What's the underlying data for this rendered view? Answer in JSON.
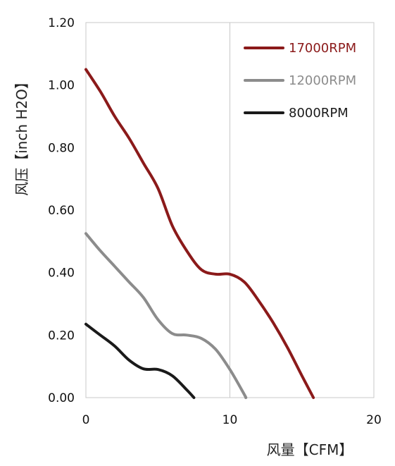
{
  "chart_data": {
    "type": "line",
    "title": "",
    "xlabel": "风量【CFM】",
    "ylabel": "风压【inch H2O】",
    "xlim": [
      0,
      20
    ],
    "ylim": [
      0,
      1.2
    ],
    "xticks": [
      0,
      10,
      20
    ],
    "xtick_labels": [
      "0",
      "10",
      "20"
    ],
    "yticks": [
      0,
      0.2,
      0.4,
      0.6,
      0.8,
      1.0,
      1.2
    ],
    "ytick_labels": [
      "0.00",
      "0.20",
      "0.40",
      "0.60",
      "0.80",
      "1.00",
      "1.20"
    ],
    "grid": "vertical",
    "legend_position": "top-right",
    "series": [
      {
        "name": "17000RPM",
        "color": "#8b1a1a",
        "points": [
          [
            0,
            1.05
          ],
          [
            1,
            0.98
          ],
          [
            2,
            0.9
          ],
          [
            3,
            0.83
          ],
          [
            4,
            0.75
          ],
          [
            5,
            0.67
          ],
          [
            6,
            0.55
          ],
          [
            7,
            0.47
          ],
          [
            8,
            0.41
          ],
          [
            9,
            0.395
          ],
          [
            10,
            0.395
          ],
          [
            11,
            0.37
          ],
          [
            12,
            0.31
          ],
          [
            13,
            0.24
          ],
          [
            14,
            0.16
          ],
          [
            15,
            0.07
          ],
          [
            15.8,
            0.0
          ]
        ]
      },
      {
        "name": "12000RPM",
        "color": "#8c8c8c",
        "points": [
          [
            0,
            0.525
          ],
          [
            1,
            0.47
          ],
          [
            2,
            0.42
          ],
          [
            3,
            0.37
          ],
          [
            4,
            0.32
          ],
          [
            5,
            0.25
          ],
          [
            6,
            0.205
          ],
          [
            7,
            0.2
          ],
          [
            8,
            0.19
          ],
          [
            9,
            0.155
          ],
          [
            10,
            0.09
          ],
          [
            11,
            0.01
          ],
          [
            11.1,
            0.0
          ]
        ]
      },
      {
        "name": "8000RPM",
        "color": "#1a1a1a",
        "points": [
          [
            0,
            0.235
          ],
          [
            1,
            0.2
          ],
          [
            2,
            0.165
          ],
          [
            3,
            0.12
          ],
          [
            4,
            0.092
          ],
          [
            5,
            0.09
          ],
          [
            6,
            0.07
          ],
          [
            7,
            0.025
          ],
          [
            7.5,
            0.0
          ]
        ]
      }
    ]
  }
}
